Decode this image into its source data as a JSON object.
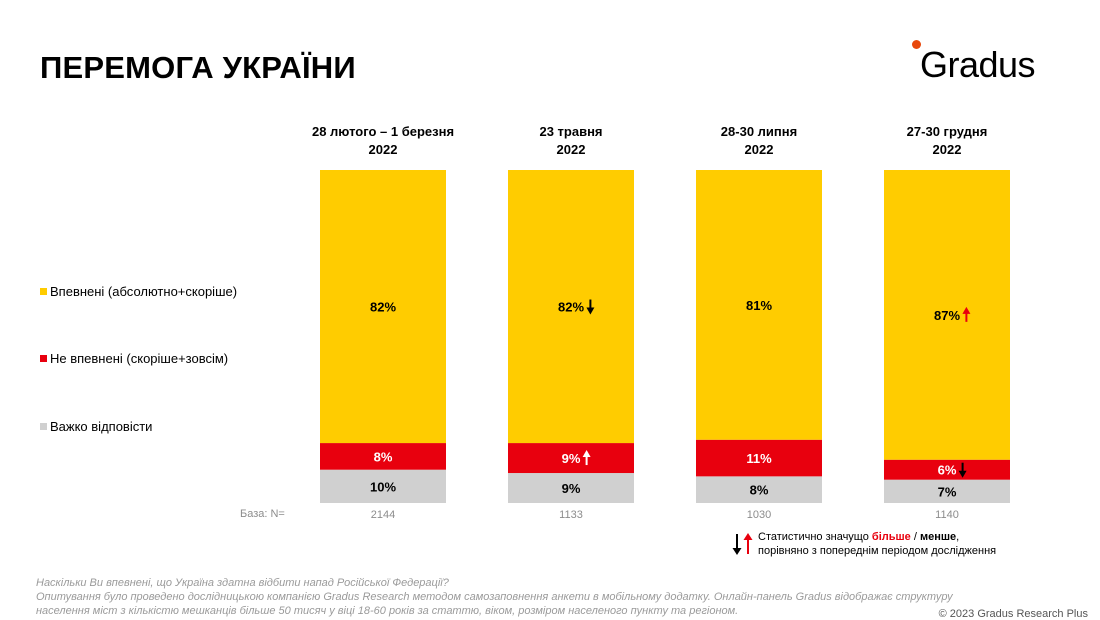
{
  "title": "ПЕРЕМОГА УКРАЇНИ",
  "logo": {
    "text": "Gradus",
    "dot_color": "#e8480c"
  },
  "legend": [
    {
      "label": "Впевнені (абсолютно+скоріше)",
      "color": "#ffcc00"
    },
    {
      "label": "Не впевнені (скоріше+зовсім)",
      "color": "#e8000e"
    },
    {
      "label": "Важко відповісти",
      "color": "#d0d0d0"
    }
  ],
  "chart_data": {
    "type": "bar",
    "stacked": true,
    "categories": [
      {
        "line1": "28 лютого – 1 березня",
        "line2": "2022"
      },
      {
        "line1": "23 травня",
        "line2": "2022"
      },
      {
        "line1": "28-30 липня",
        "line2": "2022"
      },
      {
        "line1": "27-30 грудня",
        "line2": "2022"
      }
    ],
    "series": [
      {
        "name": "Важко відповісти",
        "color": "#d0d0d0",
        "values": [
          10,
          9,
          8,
          7
        ],
        "labels": [
          "10%",
          "9%",
          "8%",
          "7%"
        ]
      },
      {
        "name": "Не впевнені (скоріше+зовсім)",
        "color": "#e8000e",
        "values": [
          8,
          9,
          11,
          6
        ],
        "labels": [
          "8%",
          "9%",
          "11%",
          "6%"
        ],
        "significance": [
          "",
          "up",
          "",
          "down"
        ]
      },
      {
        "name": "Впевнені (абсолютно+скоріше)",
        "color": "#ffcc00",
        "values": [
          82,
          82,
          81,
          87
        ],
        "labels": [
          "82%",
          "82%",
          "81%",
          "87%"
        ],
        "significance": [
          "",
          "down",
          "",
          "up"
        ]
      }
    ],
    "ylim": [
      0,
      100
    ],
    "base": {
      "label": "База: N=",
      "values": [
        "2144",
        "1133",
        "1030",
        "1140"
      ]
    }
  },
  "significance_note": {
    "prefix": "Статистично значущо ",
    "more": "більше",
    "separator": " / ",
    "less": "менше",
    "suffix": ",",
    "line2": "порівняно з попереднім періодом дослідження"
  },
  "footnote": {
    "question": "Наскільки Ви впевнені, що Україна здатна відбити напад Російської Федерації?",
    "method_line1": "Опитування було проведено дослідницькою компанією Gradus Research методом самозаповнення анкети в мобільному додатку. Онлайн-панель Gradus відображає структуру",
    "method_line2": "населення міст з кількістю мешканців більше 50 тисяч у віці 18-60 років за статтю, віком, розміром населеного пункту та регіоном."
  },
  "copyright": "© 2023 Gradus Research Plus",
  "colors": {
    "yellow": "#ffcc00",
    "red": "#e8000e",
    "gray": "#d0d0d0",
    "arrow_up": "#e8000e",
    "arrow_down": "#000000"
  }
}
